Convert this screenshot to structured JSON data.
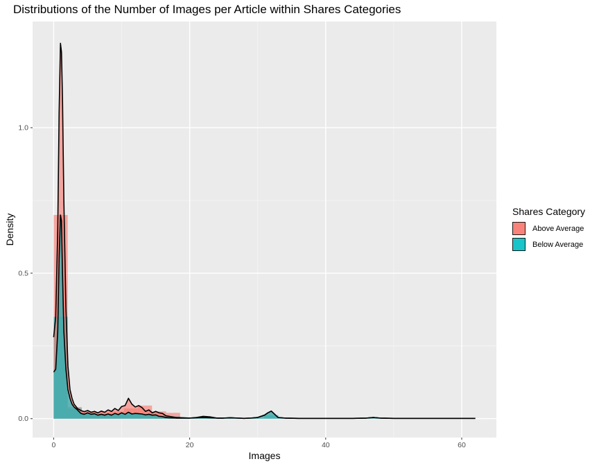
{
  "chart_data": {
    "type": "area",
    "title": "Distributions of the Number of Images per Article within Shares Categories",
    "xlabel": "Images",
    "ylabel": "Density",
    "xlim": [
      -3.1,
      65.1
    ],
    "ylim": [
      -0.065,
      1.365
    ],
    "x_ticks": [
      0,
      20,
      40,
      60
    ],
    "y_ticks": [
      0.0,
      0.5,
      1.0
    ],
    "x_tick_labels": [
      "0",
      "20",
      "40",
      "60"
    ],
    "y_tick_labels": [
      "0.0",
      "0.5",
      "1.0"
    ],
    "grid": true,
    "legend_position": "right",
    "legend_title": "Shares Category",
    "series": [
      {
        "name": "Above Average",
        "color": "#F8766D",
        "histogram": {
          "bin_edges": [
            0,
            2.066,
            4.132,
            6.198,
            8.264,
            10.33,
            12.396,
            14.462,
            16.528,
            18.594
          ],
          "density": [
            0.7,
            0.04,
            0.025,
            0.022,
            0.025,
            0.035,
            0.045,
            0.025,
            0.02
          ]
        },
        "density_curve": {
          "x": [
            0,
            0.3,
            0.6,
            0.8,
            1.0,
            1.15,
            1.3,
            1.5,
            1.8,
            2.1,
            2.4,
            2.7,
            3.0,
            3.5,
            4.0,
            4.5,
            5.0,
            5.5,
            6.0,
            6.5,
            7.0,
            7.5,
            8.0,
            8.5,
            9.0,
            9.5,
            10.0,
            10.5,
            11.0,
            11.5,
            12.0,
            12.5,
            13.0,
            13.5,
            14.0,
            14.5,
            15.0,
            15.5,
            16.0,
            16.5,
            17.0,
            18.0,
            19.0,
            20.0,
            21.0,
            22.0,
            23.0,
            24.0,
            25.0,
            26.0,
            27.0,
            28.0,
            29.0,
            30.0,
            31.0,
            31.5,
            32.0,
            32.5,
            33.0,
            34.0,
            36.0,
            38.0,
            40.0,
            42.0,
            44.0,
            46.0,
            47.0,
            48.0,
            50.0,
            55.0,
            60.0,
            62.0
          ],
          "y": [
            0.28,
            0.35,
            0.65,
            1.05,
            1.29,
            1.26,
            1.1,
            0.75,
            0.38,
            0.18,
            0.1,
            0.07,
            0.05,
            0.035,
            0.028,
            0.024,
            0.028,
            0.022,
            0.025,
            0.02,
            0.026,
            0.022,
            0.03,
            0.025,
            0.035,
            0.028,
            0.042,
            0.045,
            0.07,
            0.05,
            0.04,
            0.045,
            0.038,
            0.025,
            0.03,
            0.02,
            0.025,
            0.02,
            0.018,
            0.01,
            0.008,
            0.004,
            0.003,
            0.002,
            0.004,
            0.008,
            0.006,
            0.002,
            0.002,
            0.003,
            0.002,
            0.001,
            0.002,
            0.004,
            0.012,
            0.02,
            0.026,
            0.015,
            0.004,
            0.002,
            0.001,
            0.001,
            0.001,
            0.001,
            0.001,
            0.002,
            0.004,
            0.002,
            0.001,
            0.001,
            0.001,
            0.001
          ]
        }
      },
      {
        "name": "Below Average",
        "color": "#00BFC4",
        "histogram": {
          "bin_edges": [
            0,
            2.066,
            4.132,
            6.198,
            8.264,
            10.33,
            12.396,
            14.462,
            16.528,
            18.594,
            20.66,
            22.726,
            24.792,
            26.858,
            28.924,
            30.99,
            33.056
          ],
          "density": [
            0.35,
            0.035,
            0.02,
            0.015,
            0.015,
            0.016,
            0.016,
            0.012,
            0.007,
            0.002,
            0.002,
            0.002,
            0.002,
            0.002,
            0.002,
            0.012
          ]
        },
        "density_curve": {
          "x": [
            0,
            0.3,
            0.6,
            0.8,
            1.0,
            1.15,
            1.3,
            1.5,
            1.8,
            2.1,
            2.4,
            2.7,
            3.0,
            3.5,
            4.0,
            4.5,
            5.0,
            5.5,
            6.0,
            6.5,
            7.0,
            7.5,
            8.0,
            8.5,
            9.0,
            9.5,
            10.0,
            10.5,
            11.0,
            11.5,
            12.0,
            12.5,
            13.0,
            13.5,
            14.0,
            14.5,
            15.0,
            15.5,
            16.0,
            16.5,
            17.0,
            18.0,
            19.0,
            20.0,
            21.0,
            22.0,
            23.0,
            24.0,
            25.0,
            26.0,
            27.0,
            28.0,
            29.0,
            30.0,
            31.0,
            31.5,
            32.0,
            32.5,
            33.0,
            34.0,
            36.0,
            38.0,
            40.0,
            42.0,
            44.0,
            46.0,
            47.0,
            48.0,
            50.0,
            55.0,
            60.0,
            62.0
          ],
          "y": [
            0.16,
            0.17,
            0.3,
            0.55,
            0.7,
            0.68,
            0.5,
            0.3,
            0.17,
            0.1,
            0.07,
            0.05,
            0.04,
            0.03,
            0.018,
            0.015,
            0.02,
            0.015,
            0.017,
            0.012,
            0.015,
            0.012,
            0.016,
            0.012,
            0.018,
            0.014,
            0.02,
            0.015,
            0.022,
            0.016,
            0.018,
            0.017,
            0.016,
            0.013,
            0.015,
            0.012,
            0.013,
            0.008,
            0.007,
            0.004,
            0.003,
            0.002,
            0.002,
            0.002,
            0.003,
            0.004,
            0.003,
            0.002,
            0.002,
            0.003,
            0.002,
            0.001,
            0.002,
            0.004,
            0.012,
            0.02,
            0.026,
            0.015,
            0.004,
            0.002,
            0.001,
            0.001,
            0.001,
            0.001,
            0.001,
            0.002,
            0.004,
            0.002,
            0.001,
            0.001,
            0.001,
            0.001
          ]
        }
      }
    ]
  }
}
